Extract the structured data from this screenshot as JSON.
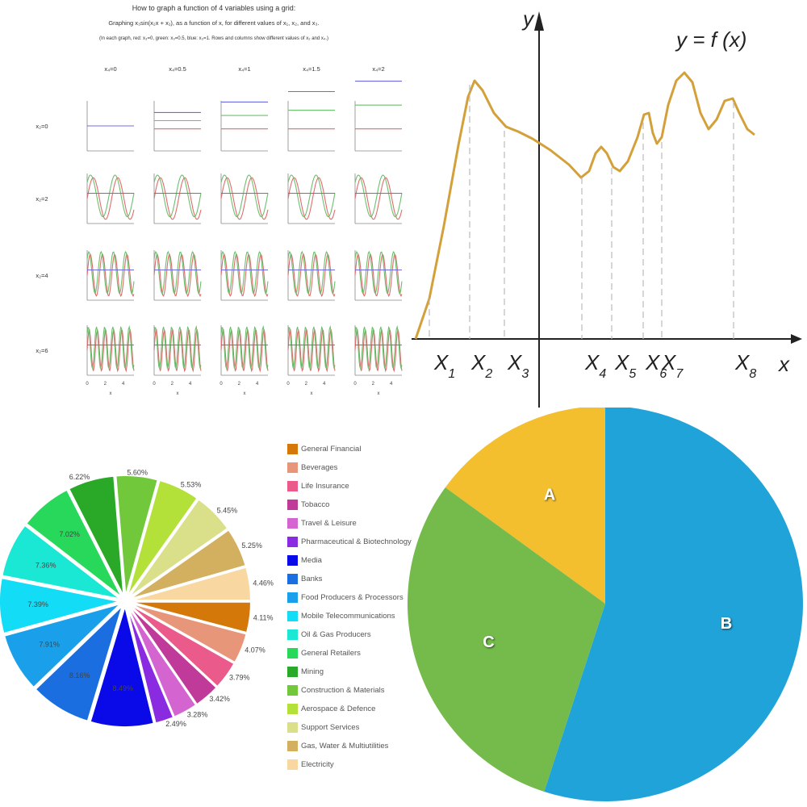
{
  "chart_data": [
    {
      "type": "line",
      "title": "How to graph a function of 4 variables using a grid:",
      "subtitle": "Graphing x₃sin(x₂x + x₁), as a function of x, for different values of x₁, x₂, and x₃.",
      "note": "(In each graph, red: x₃=0, green: x₃=0.5, blue: x₃=1.  Rows and columns show different values of x₂ and x₄.)",
      "columns": [
        "x₄=0",
        "x₄=0.5",
        "x₄=1",
        "x₄=1.5",
        "x₄=2"
      ],
      "rows": [
        "x₂=0",
        "x₂=2",
        "x₂=4",
        "x₂=6"
      ],
      "column_values": [
        0,
        0.5,
        1,
        1.5,
        2
      ],
      "row_values": [
        0,
        2,
        4,
        6
      ],
      "x_ticks": [
        "0",
        "2",
        "4"
      ],
      "xlabel": "x",
      "series": [
        {
          "color": "#e06c6c"
        },
        {
          "color": "#6cbf6c"
        },
        {
          "color": "#6c6ce0"
        }
      ]
    },
    {
      "type": "line",
      "title": "y = f (x)",
      "xlabel": "x",
      "ylabel": "y",
      "x_markers": [
        {
          "label": "X",
          "sub": "1"
        },
        {
          "label": "X",
          "sub": "2"
        },
        {
          "label": "X",
          "sub": "3"
        },
        {
          "label": "X",
          "sub": "4"
        },
        {
          "label": "X",
          "sub": "5"
        },
        {
          "label": "X",
          "sub": "6"
        },
        {
          "label": "X",
          "sub": "7"
        },
        {
          "label": "X",
          "sub": "8"
        }
      ],
      "curve_color": "#d4a03a"
    },
    {
      "type": "pie",
      "slices": [
        {
          "label": "General Financial",
          "value": 4.11,
          "text": "4.11%",
          "color": "#d4780a"
        },
        {
          "label": "Beverages",
          "value": 4.07,
          "text": "4.07%",
          "color": "#e8967a"
        },
        {
          "label": "Life Insurance",
          "value": 3.79,
          "text": "3.79%",
          "color": "#ea5a8a"
        },
        {
          "label": "Tobacco",
          "value": 3.42,
          "text": "3.42%",
          "color": "#c03a9a"
        },
        {
          "label": "Travel & Leisure",
          "value": 3.28,
          "text": "3.28%",
          "color": "#d465d0"
        },
        {
          "label": "Pharmaceutical & Biotechnology",
          "value": 2.49,
          "text": "2.49%",
          "color": "#8a2be2"
        },
        {
          "label": "Media",
          "value": 8.49,
          "text": "8.49%",
          "color": "#0a0ae8"
        },
        {
          "label": "Banks",
          "value": 8.16,
          "text": "8.16%",
          "color": "#1a6ee0"
        },
        {
          "label": "Food Producers & Processors",
          "value": 7.91,
          "text": "7.91%",
          "color": "#1aa0ea"
        },
        {
          "label": "Mobile Telecommunications",
          "value": 7.39,
          "text": "7.39%",
          "color": "#12dcf6"
        },
        {
          "label": "Oil & Gas Producers",
          "value": 7.36,
          "text": "7.36%",
          "color": "#1ae8d4"
        },
        {
          "label": "General Retailers",
          "value": 7.02,
          "text": "7.02%",
          "color": "#28d85a"
        },
        {
          "label": "Mining",
          "value": 6.22,
          "text": "6.22%",
          "color": "#2aa828"
        },
        {
          "label": "Construction & Materials",
          "value": 5.6,
          "text": "5.60%",
          "color": "#70c83a"
        },
        {
          "label": "Aerospace & Defence",
          "value": 5.53,
          "text": "5.53%",
          "color": "#b4e03a"
        },
        {
          "label": "Support Services",
          "value": 5.45,
          "text": "5.45%",
          "color": "#dae08a"
        },
        {
          "label": "Gas, Water & Multiutilities",
          "value": 5.25,
          "text": "5.25%",
          "color": "#d2b060"
        },
        {
          "label": "Electricity",
          "value": 4.46,
          "text": "4.46%",
          "color": "#f8d8a0"
        }
      ]
    },
    {
      "type": "pie",
      "slices": [
        {
          "label": "A",
          "value": 15,
          "color": "#f4bf2e"
        },
        {
          "label": "B",
          "value": 55,
          "color": "#1fa3d8"
        },
        {
          "label": "C",
          "value": 30,
          "color": "#74bb4b"
        }
      ]
    }
  ]
}
